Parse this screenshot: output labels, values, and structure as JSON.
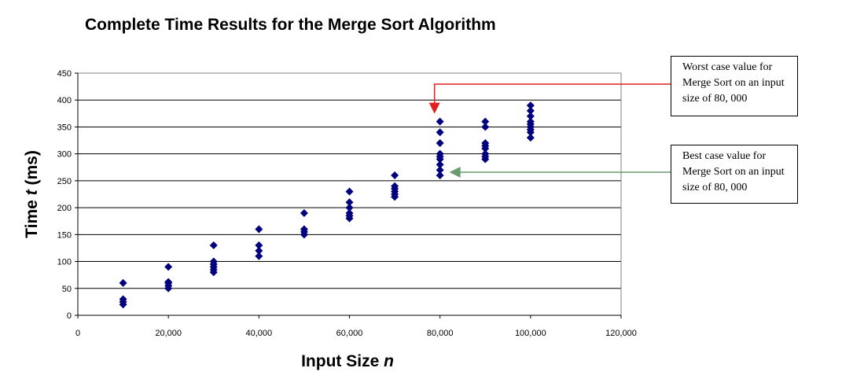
{
  "chart_data": {
    "type": "scatter",
    "title": "Complete Time Results for the Merge Sort Algorithm",
    "xlabel": {
      "text": "Input Size ",
      "var": "n"
    },
    "ylabel": {
      "text_pre": "Time ",
      "var": "t",
      "text_post": " (ms)"
    },
    "xlim": [
      0,
      120000
    ],
    "ylim": [
      0,
      450
    ],
    "x_ticks": [
      0,
      20000,
      40000,
      60000,
      80000,
      100000,
      120000
    ],
    "x_tick_labels": [
      "0",
      "20,000",
      "40,000",
      "60,000",
      "80,000",
      "100,000",
      "120,000"
    ],
    "y_ticks": [
      0,
      50,
      100,
      150,
      200,
      250,
      300,
      350,
      400,
      450
    ],
    "y_tick_labels": [
      "0",
      "50",
      "100",
      "150",
      "200",
      "250",
      "300",
      "350",
      "400",
      "450"
    ],
    "grid": "horizontal",
    "marker_color": "#00007f",
    "points": [
      {
        "x": 10000,
        "y": 60
      },
      {
        "x": 10000,
        "y": 30
      },
      {
        "x": 10000,
        "y": 25
      },
      {
        "x": 10000,
        "y": 20
      },
      {
        "x": 20000,
        "y": 90
      },
      {
        "x": 20000,
        "y": 62
      },
      {
        "x": 20000,
        "y": 60
      },
      {
        "x": 20000,
        "y": 55
      },
      {
        "x": 20000,
        "y": 50
      },
      {
        "x": 30000,
        "y": 130
      },
      {
        "x": 30000,
        "y": 100
      },
      {
        "x": 30000,
        "y": 95
      },
      {
        "x": 30000,
        "y": 90
      },
      {
        "x": 30000,
        "y": 85
      },
      {
        "x": 30000,
        "y": 80
      },
      {
        "x": 40000,
        "y": 160
      },
      {
        "x": 40000,
        "y": 130
      },
      {
        "x": 40000,
        "y": 120
      },
      {
        "x": 40000,
        "y": 110
      },
      {
        "x": 50000,
        "y": 190
      },
      {
        "x": 50000,
        "y": 160
      },
      {
        "x": 50000,
        "y": 155
      },
      {
        "x": 50000,
        "y": 150
      },
      {
        "x": 60000,
        "y": 230
      },
      {
        "x": 60000,
        "y": 210
      },
      {
        "x": 60000,
        "y": 200
      },
      {
        "x": 60000,
        "y": 190
      },
      {
        "x": 60000,
        "y": 185
      },
      {
        "x": 60000,
        "y": 180
      },
      {
        "x": 70000,
        "y": 260
      },
      {
        "x": 70000,
        "y": 240
      },
      {
        "x": 70000,
        "y": 235
      },
      {
        "x": 70000,
        "y": 230
      },
      {
        "x": 70000,
        "y": 225
      },
      {
        "x": 70000,
        "y": 220
      },
      {
        "x": 80000,
        "y": 360
      },
      {
        "x": 80000,
        "y": 340
      },
      {
        "x": 80000,
        "y": 320
      },
      {
        "x": 80000,
        "y": 300
      },
      {
        "x": 80000,
        "y": 295
      },
      {
        "x": 80000,
        "y": 290
      },
      {
        "x": 80000,
        "y": 280
      },
      {
        "x": 80000,
        "y": 270
      },
      {
        "x": 80000,
        "y": 260
      },
      {
        "x": 90000,
        "y": 360
      },
      {
        "x": 90000,
        "y": 350
      },
      {
        "x": 90000,
        "y": 320
      },
      {
        "x": 90000,
        "y": 315
      },
      {
        "x": 90000,
        "y": 310
      },
      {
        "x": 90000,
        "y": 300
      },
      {
        "x": 90000,
        "y": 295
      },
      {
        "x": 90000,
        "y": 290
      },
      {
        "x": 100000,
        "y": 390
      },
      {
        "x": 100000,
        "y": 380
      },
      {
        "x": 100000,
        "y": 370
      },
      {
        "x": 100000,
        "y": 360
      },
      {
        "x": 100000,
        "y": 355
      },
      {
        "x": 100000,
        "y": 350
      },
      {
        "x": 100000,
        "y": 345
      },
      {
        "x": 100000,
        "y": 340
      },
      {
        "x": 100000,
        "y": 330
      }
    ],
    "annotations": [
      {
        "id": "worst",
        "lines": [
          "Worst case value for",
          "Merge Sort on an input",
          "size of 80, 000"
        ],
        "target": {
          "x": 80000,
          "y": 360
        },
        "arrow_color": "#e02020"
      },
      {
        "id": "best",
        "lines": [
          "Best case value for",
          "Merge Sort on an input",
          "size of 80, 000"
        ],
        "target": {
          "x": 80000,
          "y": 260
        },
        "arrow_color": "#6a9a70"
      }
    ]
  }
}
